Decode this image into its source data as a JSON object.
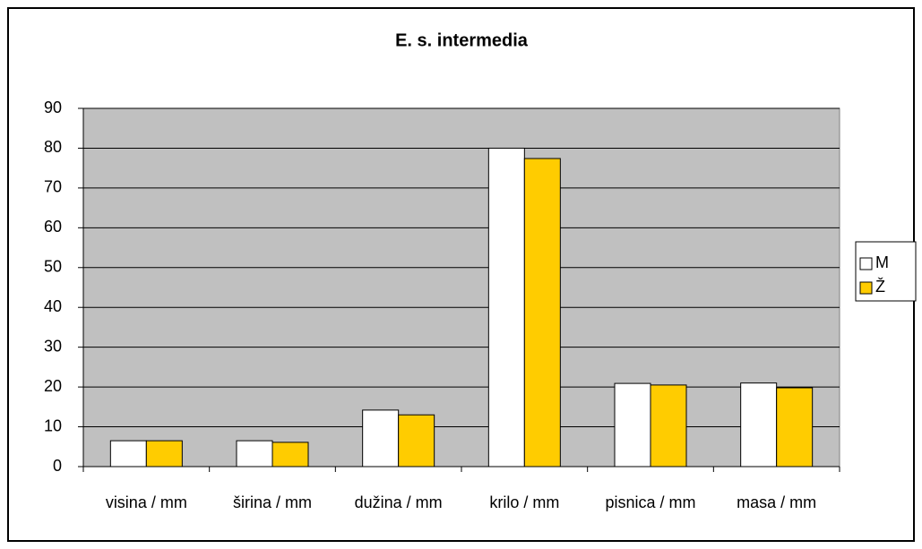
{
  "chart_data": {
    "type": "bar",
    "title": "E. s. intermedia",
    "categories": [
      "visina / mm",
      "širina / mm",
      "dužina / mm",
      "krilo / mm",
      "pisnica / mm",
      "masa / mm"
    ],
    "series": [
      {
        "name": "M",
        "color": "#ffffff",
        "values": [
          6.5,
          6.5,
          14.2,
          80,
          20.9,
          21
        ]
      },
      {
        "name": "Ž",
        "color": "#ffcc00",
        "values": [
          6.5,
          6.1,
          13,
          77.4,
          20.5,
          19.8
        ]
      }
    ],
    "ylim": [
      0,
      90
    ],
    "yticks": [
      0,
      10,
      20,
      30,
      40,
      50,
      60,
      70,
      80,
      90
    ],
    "grid": true,
    "legend": "right"
  }
}
